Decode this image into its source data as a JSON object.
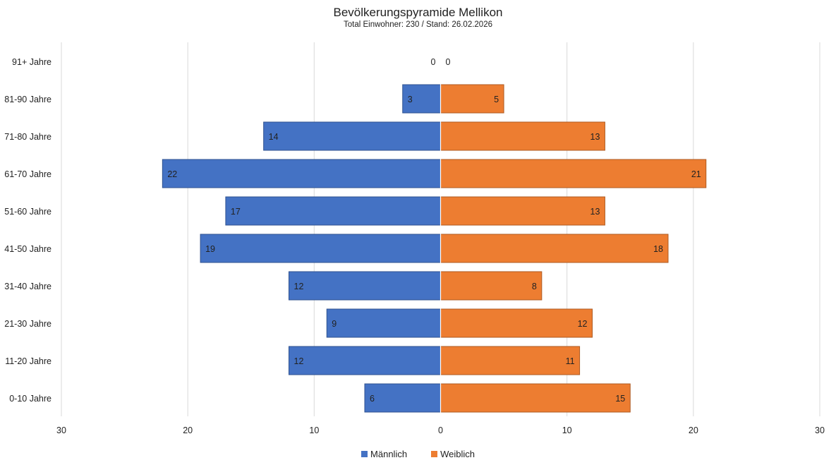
{
  "chart_data": {
    "type": "bar",
    "orientation": "horizontal-diverging",
    "title": "Bevölkerungspyramide Mellikon",
    "subtitle": "Total Einwohner: 230 / Stand: 26.02.2026",
    "categories": [
      "91+ Jahre",
      "81-90 Jahre",
      "71-80 Jahre",
      "61-70 Jahre",
      "51-60 Jahre",
      "41-50 Jahre",
      "31-40 Jahre",
      "21-30 Jahre",
      "11-20 Jahre",
      "0-10 Jahre"
    ],
    "series": [
      {
        "name": "Männlich",
        "color": "#4472c4",
        "side": "left",
        "values": [
          0,
          3,
          14,
          22,
          17,
          19,
          12,
          9,
          12,
          6
        ]
      },
      {
        "name": "Weiblich",
        "color": "#ed7d31",
        "side": "right",
        "values": [
          0,
          5,
          13,
          21,
          13,
          18,
          8,
          12,
          11,
          15
        ]
      }
    ],
    "xlim": [
      -30,
      30
    ],
    "xticks": [
      -30,
      -20,
      -10,
      0,
      10,
      20,
      30
    ],
    "xtick_labels": [
      "30",
      "20",
      "10",
      "0",
      "10",
      "20",
      "30"
    ],
    "grid": true,
    "legend_position": "bottom"
  }
}
